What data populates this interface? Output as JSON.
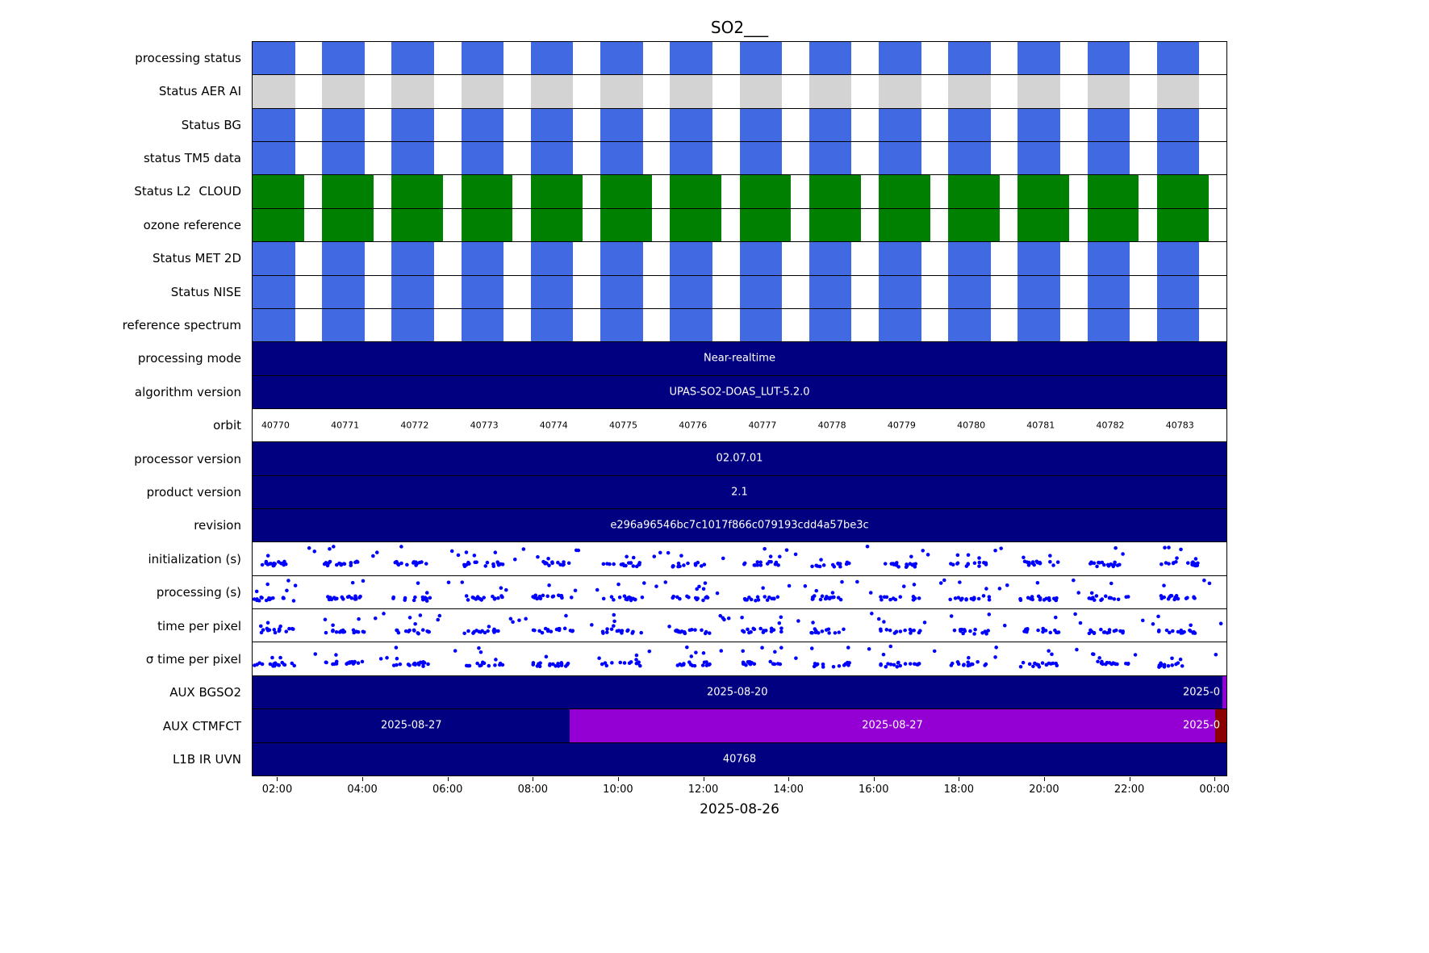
{
  "colors": {
    "blue": "#4169e1",
    "gray": "#d3d3d3",
    "green": "#008000",
    "navy": "#000080",
    "purple": "#9400d3",
    "darkred": "#8b0000",
    "dot": "#0000ff"
  },
  "chart_data": {
    "type": "table",
    "title": "SO2___",
    "xlabel": "2025-08-26",
    "x_tick_labels": [
      "02:00",
      "04:00",
      "06:00",
      "08:00",
      "10:00",
      "12:00",
      "14:00",
      "16:00",
      "18:00",
      "20:00",
      "22:00",
      "00:00"
    ],
    "rows": [
      {
        "label": "processing status",
        "type": "interval-blocks",
        "color_key": "blue",
        "n_blocks": 14
      },
      {
        "label": "Status AER AI",
        "type": "interval-blocks",
        "color_key": "gray",
        "n_blocks": 14
      },
      {
        "label": "Status BG",
        "type": "interval-blocks",
        "color_key": "blue",
        "n_blocks": 14
      },
      {
        "label": "status TM5 data",
        "type": "interval-blocks",
        "color_key": "blue",
        "n_blocks": 14
      },
      {
        "label": "Status L2  CLOUD",
        "type": "interval-blocks",
        "color_key": "green",
        "n_blocks": 14
      },
      {
        "label": "ozone reference",
        "type": "interval-blocks",
        "color_key": "green",
        "n_blocks": 14
      },
      {
        "label": "Status MET 2D",
        "type": "interval-blocks",
        "color_key": "blue",
        "n_blocks": 14
      },
      {
        "label": "Status NISE",
        "type": "interval-blocks",
        "color_key": "blue",
        "n_blocks": 14
      },
      {
        "label": "reference spectrum",
        "type": "interval-blocks",
        "color_key": "blue",
        "n_blocks": 14
      },
      {
        "label": "processing mode",
        "type": "solid",
        "color_key": "navy",
        "text": "Near-realtime"
      },
      {
        "label": "algorithm version",
        "type": "solid",
        "color_key": "navy",
        "text": "UPAS-SO2-DOAS_LUT-5.2.0"
      },
      {
        "label": "orbit",
        "type": "orbit-numbers",
        "values": [
          "40770",
          "40771",
          "40772",
          "40773",
          "40774",
          "40775",
          "40776",
          "40777",
          "40778",
          "40779",
          "40780",
          "40781",
          "40782",
          "40783"
        ]
      },
      {
        "label": "processor version",
        "type": "solid",
        "color_key": "navy",
        "text": "02.07.01"
      },
      {
        "label": "product version",
        "type": "solid",
        "color_key": "navy",
        "text": "2.1"
      },
      {
        "label": "revision",
        "type": "solid",
        "color_key": "navy",
        "text": "e296a96546bc7c1017f866c079193cdd4a57be3c"
      },
      {
        "label": "initialization (s)",
        "type": "scatter",
        "color_key": "dot"
      },
      {
        "label": "processing (s)",
        "type": "scatter",
        "color_key": "dot"
      },
      {
        "label": "time per pixel",
        "type": "scatter",
        "color_key": "dot"
      },
      {
        "label": "σ time per pixel",
        "type": "scatter",
        "color_key": "dot"
      },
      {
        "label": "AUX BGSO2",
        "type": "segments",
        "segments": [
          {
            "from": 0,
            "to": 0.9955,
            "color_key": "navy",
            "text": "2025-08-20"
          },
          {
            "from": 0.9955,
            "to": 1,
            "color_key": "purple",
            "text": ""
          }
        ],
        "right_label": "2025-0"
      },
      {
        "label": "AUX CTMFCT",
        "type": "segments",
        "segments": [
          {
            "from": 0,
            "to": 0.326,
            "color_key": "navy",
            "text": "2025-08-27"
          },
          {
            "from": 0.326,
            "to": 0.988,
            "color_key": "purple",
            "text": "2025-08-27"
          },
          {
            "from": 0.988,
            "to": 1,
            "color_key": "darkred",
            "text": ""
          }
        ],
        "right_label": "2025-0"
      },
      {
        "label": "L1B IR UVN",
        "type": "solid",
        "color_key": "navy",
        "text": "40768"
      }
    ]
  }
}
